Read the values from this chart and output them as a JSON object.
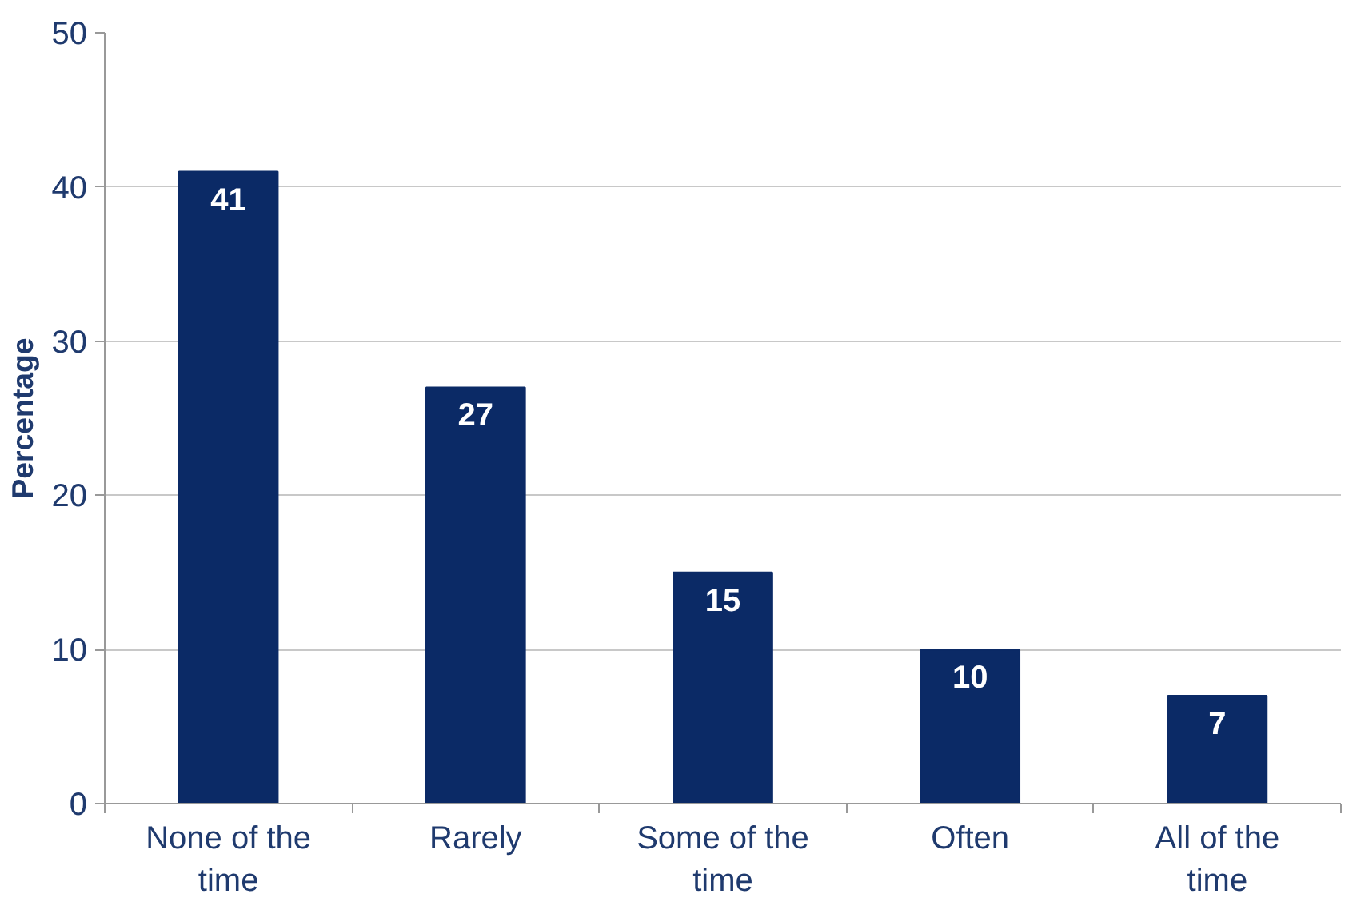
{
  "chart_data": {
    "type": "bar",
    "ylabel": "Percentage",
    "categories": [
      "None of the time",
      "Rarely",
      "Some of the time",
      "Often",
      "All of the time"
    ],
    "values": [
      41,
      27,
      15,
      10,
      7
    ],
    "color": "#0b2a66",
    "ylim": [
      0,
      50
    ],
    "yticks": [
      0,
      10,
      20,
      30,
      40,
      50
    ],
    "grid": "y",
    "data_labels": true
  }
}
